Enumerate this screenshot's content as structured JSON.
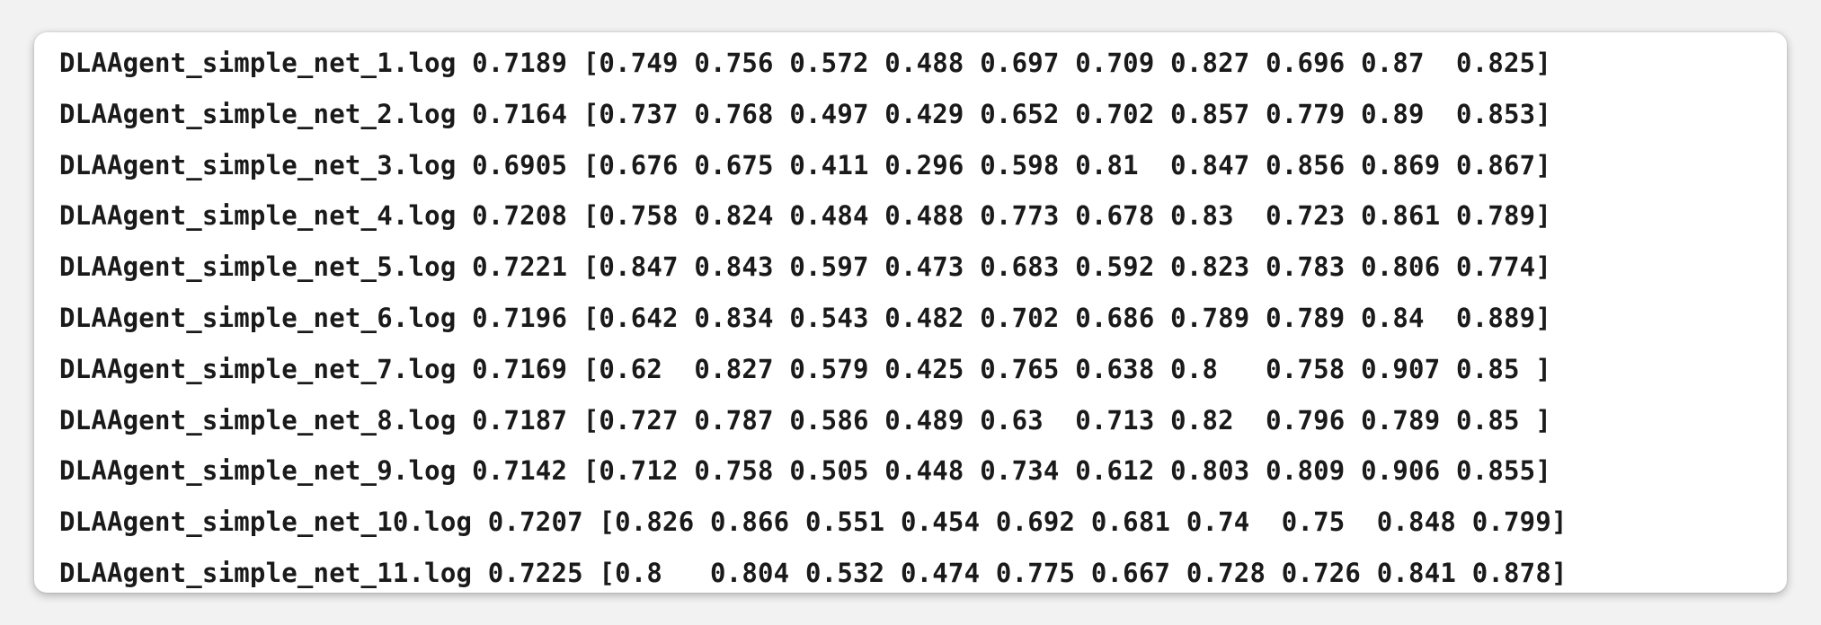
{
  "terminal": {
    "lines": [
      "DLAAgent_simple_net_1.log 0.7189 [0.749 0.756 0.572 0.488 0.697 0.709 0.827 0.696 0.87  0.825]",
      "DLAAgent_simple_net_2.log 0.7164 [0.737 0.768 0.497 0.429 0.652 0.702 0.857 0.779 0.89  0.853]",
      "DLAAgent_simple_net_3.log 0.6905 [0.676 0.675 0.411 0.296 0.598 0.81  0.847 0.856 0.869 0.867]",
      "DLAAgent_simple_net_4.log 0.7208 [0.758 0.824 0.484 0.488 0.773 0.678 0.83  0.723 0.861 0.789]",
      "DLAAgent_simple_net_5.log 0.7221 [0.847 0.843 0.597 0.473 0.683 0.592 0.823 0.783 0.806 0.774]",
      "DLAAgent_simple_net_6.log 0.7196 [0.642 0.834 0.543 0.482 0.702 0.686 0.789 0.789 0.84  0.889]",
      "DLAAgent_simple_net_7.log 0.7169 [0.62  0.827 0.579 0.425 0.765 0.638 0.8   0.758 0.907 0.85 ]",
      "DLAAgent_simple_net_8.log 0.7187 [0.727 0.787 0.586 0.489 0.63  0.713 0.82  0.796 0.789 0.85 ]",
      "DLAAgent_simple_net_9.log 0.7142 [0.712 0.758 0.505 0.448 0.734 0.612 0.803 0.809 0.906 0.855]",
      "DLAAgent_simple_net_10.log 0.7207 [0.826 0.866 0.551 0.454 0.692 0.681 0.74  0.75  0.848 0.799]",
      "DLAAgent_simple_net_11.log 0.7225 [0.8   0.804 0.532 0.474 0.775 0.667 0.728 0.726 0.841 0.878]"
    ]
  }
}
